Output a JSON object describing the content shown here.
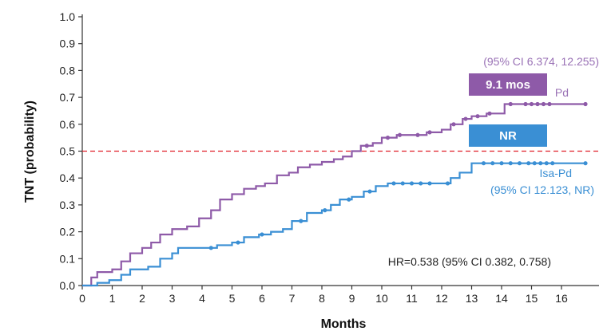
{
  "chart_data": {
    "type": "line",
    "xlabel": "Months",
    "ylabel": "TNT (probability)",
    "xlim": [
      0,
      17
    ],
    "ylim": [
      0,
      1.0
    ],
    "x_ticks": [
      0,
      1,
      2,
      3,
      4,
      5,
      6,
      7,
      8,
      9,
      10,
      11,
      12,
      13,
      14,
      15,
      16
    ],
    "y_ticks": [
      "0.0",
      "0.1",
      "0.2",
      "0.3",
      "0.4",
      "0.5",
      "0.6",
      "0.7",
      "0.8",
      "0.9",
      "1.0"
    ],
    "reference_line": {
      "y": 0.5,
      "style": "dashed",
      "color": "#e0202a"
    },
    "series": [
      {
        "name": "Pd",
        "color": "#8e5aa8",
        "points": [
          [
            0,
            0
          ],
          [
            0.3,
            0.03
          ],
          [
            0.5,
            0.05
          ],
          [
            1.0,
            0.06
          ],
          [
            1.3,
            0.09
          ],
          [
            1.6,
            0.12
          ],
          [
            2.0,
            0.14
          ],
          [
            2.3,
            0.16
          ],
          [
            2.6,
            0.19
          ],
          [
            3.0,
            0.21
          ],
          [
            3.5,
            0.22
          ],
          [
            3.9,
            0.25
          ],
          [
            4.3,
            0.28
          ],
          [
            4.6,
            0.32
          ],
          [
            5.0,
            0.34
          ],
          [
            5.4,
            0.36
          ],
          [
            5.8,
            0.37
          ],
          [
            6.1,
            0.38
          ],
          [
            6.5,
            0.41
          ],
          [
            6.9,
            0.42
          ],
          [
            7.2,
            0.44
          ],
          [
            7.6,
            0.45
          ],
          [
            8.0,
            0.46
          ],
          [
            8.4,
            0.47
          ],
          [
            8.7,
            0.48
          ],
          [
            9.0,
            0.5
          ],
          [
            9.3,
            0.52
          ],
          [
            9.7,
            0.53
          ],
          [
            10.0,
            0.55
          ],
          [
            10.5,
            0.56
          ],
          [
            11.0,
            0.56
          ],
          [
            11.5,
            0.57
          ],
          [
            12.0,
            0.58
          ],
          [
            12.3,
            0.6
          ],
          [
            12.7,
            0.62
          ],
          [
            13.0,
            0.63
          ],
          [
            13.5,
            0.64
          ],
          [
            14.0,
            0.64
          ],
          [
            14.1,
            0.675
          ],
          [
            15.0,
            0.675
          ],
          [
            16.0,
            0.675
          ],
          [
            16.8,
            0.675
          ]
        ],
        "censor_x": [
          9.5,
          10.2,
          10.6,
          11.2,
          11.6,
          12.4,
          12.8,
          13.2,
          13.6,
          14.3,
          14.8,
          15.0,
          15.2,
          15.4,
          15.6,
          16.8
        ]
      },
      {
        "name": "Isa-Pd",
        "color": "#3a8fd4",
        "points": [
          [
            0,
            0
          ],
          [
            0.5,
            0.01
          ],
          [
            0.9,
            0.02
          ],
          [
            1.3,
            0.04
          ],
          [
            1.6,
            0.06
          ],
          [
            2.2,
            0.07
          ],
          [
            2.6,
            0.1
          ],
          [
            3.0,
            0.12
          ],
          [
            3.2,
            0.14
          ],
          [
            4.0,
            0.14
          ],
          [
            4.5,
            0.15
          ],
          [
            5.0,
            0.16
          ],
          [
            5.4,
            0.18
          ],
          [
            5.9,
            0.19
          ],
          [
            6.3,
            0.2
          ],
          [
            6.7,
            0.21
          ],
          [
            7.0,
            0.24
          ],
          [
            7.5,
            0.27
          ],
          [
            8.0,
            0.28
          ],
          [
            8.3,
            0.3
          ],
          [
            8.6,
            0.32
          ],
          [
            9.0,
            0.33
          ],
          [
            9.4,
            0.35
          ],
          [
            9.8,
            0.37
          ],
          [
            10.2,
            0.38
          ],
          [
            11.0,
            0.38
          ],
          [
            12.0,
            0.38
          ],
          [
            12.3,
            0.4
          ],
          [
            12.6,
            0.42
          ],
          [
            13.0,
            0.455
          ],
          [
            14.0,
            0.455
          ],
          [
            15.0,
            0.455
          ],
          [
            16.8,
            0.455
          ]
        ],
        "censor_x": [
          4.3,
          5.2,
          6.0,
          7.3,
          8.1,
          8.9,
          9.6,
          10.4,
          10.7,
          11.0,
          11.3,
          11.6,
          12.2,
          13.4,
          13.7,
          14.0,
          14.3,
          14.6,
          14.9,
          15.1,
          15.3,
          15.5,
          15.7,
          16.8
        ]
      }
    ],
    "badges": [
      {
        "text": "9.1 mos",
        "color": "#8e5aa8"
      },
      {
        "text": "NR",
        "color": "#3a8fd4"
      }
    ],
    "annotations": {
      "pd_ci": "(95% CI 6.374, 12.255)",
      "pd_label": "Pd",
      "isa_label": "Isa-Pd",
      "isa_ci": "(95% CI 12.123, NR)",
      "hr": "HR=0.538 (95% CI 0.382, 0.758)"
    }
  }
}
